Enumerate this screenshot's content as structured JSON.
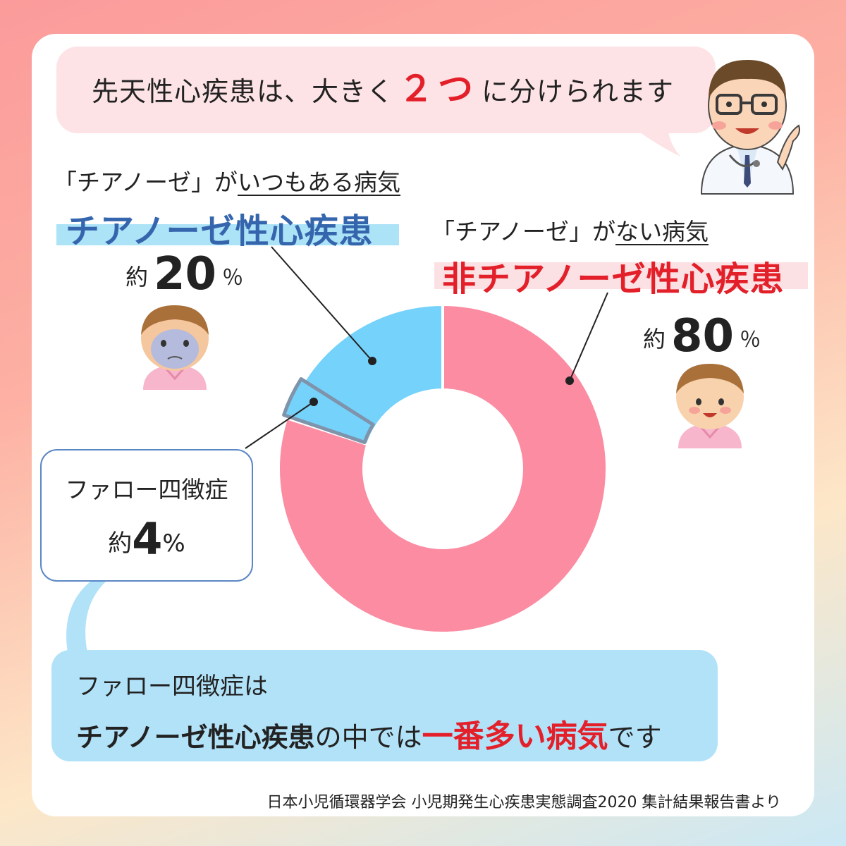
{
  "header": {
    "text_before": "先天性心疾患は、大きく",
    "highlight": "２つ",
    "text_after": "に分けられます"
  },
  "cyanotic": {
    "label_prefix": "「チアノーゼ」が",
    "label_underlined": "いつもある病気",
    "title": "チアノーゼ性心疾患",
    "percent_prefix": "約",
    "percent_value": "20",
    "percent_unit": "％"
  },
  "acyanotic": {
    "label_prefix": "「チアノーゼ」が",
    "label_underlined": "ない病気",
    "title": "非チアノーゼ性心疾患",
    "percent_prefix": "約",
    "percent_value": "80",
    "percent_unit": "％"
  },
  "tof": {
    "name": "ファロー四徴症",
    "percent_prefix": "約",
    "percent_value": "4",
    "percent_unit": "%"
  },
  "note": {
    "line1": "ファロー四徴症は",
    "line2_a": "チアノーゼ性心疾患",
    "line2_b": "の中では",
    "line2_c": "一番多い病気",
    "line2_d": "です"
  },
  "source": "日本小児循環器学会 小児期発生心疾患実態調査2020 集計結果報告書より",
  "colors": {
    "accent_red": "#e3202a",
    "cyanotic_blue": "#3566ad",
    "slice_pink": "#fb8ca2",
    "slice_blue": "#74d2fb",
    "tof_outline": "#7f93aa"
  },
  "chart_data": {
    "type": "pie",
    "donut": true,
    "slices": [
      {
        "label": "非チアノーゼ性心疾患",
        "value": 80
      },
      {
        "label": "チアノーゼ性心疾患",
        "value": 20
      }
    ],
    "highlighted_subslice": {
      "label": "ファロー四徴症",
      "value": 4,
      "parent": "チアノーゼ性心疾患"
    }
  }
}
